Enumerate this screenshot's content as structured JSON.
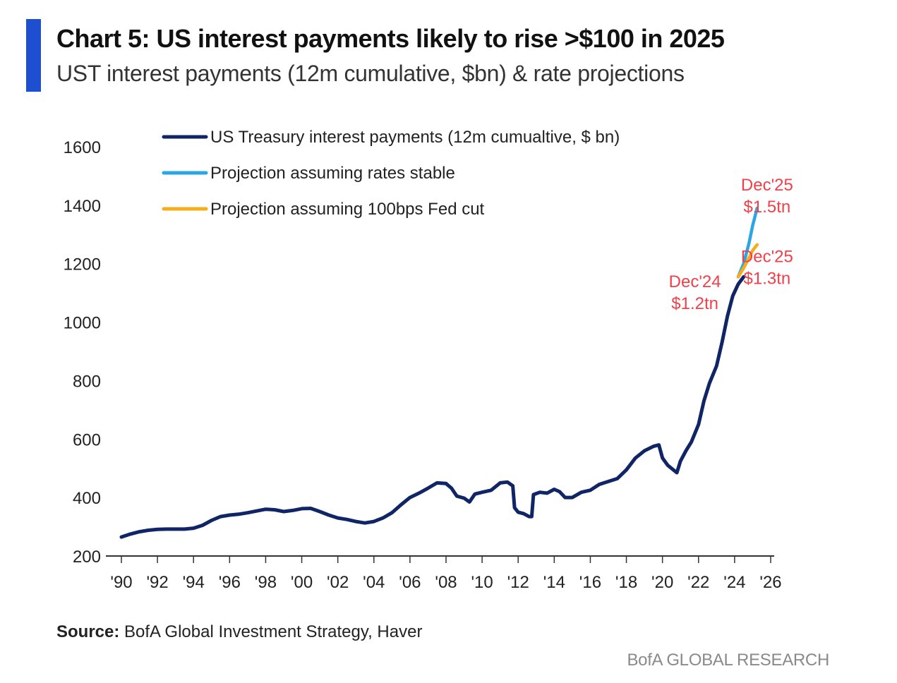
{
  "header": {
    "title": "Chart 5: US interest payments likely to rise >$100 in 2025",
    "subtitle": "UST interest payments (12m cumulative, $bn) & rate projections"
  },
  "footer": {
    "source_label": "Source:",
    "source_text": " BofA Global Investment Strategy, Haver",
    "brand": "BofA GLOBAL RESEARCH"
  },
  "colors": {
    "accent": "#1f4fd1",
    "main_series": "#0f2566",
    "stable_series": "#2aa6e4",
    "cut_series": "#f6ad1c",
    "annotation": "#f2404a",
    "axis": "#333333"
  },
  "chart_data": {
    "type": "line",
    "title": "Chart 5: US interest payments likely to rise >$100 in 2025",
    "subtitle": "UST interest payments (12m cumulative, $bn) & rate projections",
    "xlabel": "",
    "ylabel": "",
    "xlim": [
      1990,
      2026
    ],
    "ylim": [
      200,
      1600
    ],
    "y_ticks": [
      200,
      400,
      600,
      800,
      1000,
      1200,
      1400,
      1600
    ],
    "x_ticks": [
      1990,
      1992,
      1994,
      1996,
      1998,
      2000,
      2002,
      2004,
      2006,
      2008,
      2010,
      2012,
      2014,
      2016,
      2018,
      2020,
      2022,
      2024,
      2026
    ],
    "x_tick_labels": [
      "'90",
      "'92",
      "'94",
      "'96",
      "'98",
      "'00",
      "'02",
      "'04",
      "'06",
      "'08",
      "'10",
      "'12",
      "'14",
      "'16",
      "'18",
      "'20",
      "'22",
      "'24",
      "'26"
    ],
    "grid": false,
    "legend_position": "top-left",
    "series": [
      {
        "name": "US Treasury interest payments (12m cumualtive, $ bn)",
        "color": "#0f2566",
        "points": [
          [
            1990.0,
            265
          ],
          [
            1990.5,
            275
          ],
          [
            1991.0,
            283
          ],
          [
            1991.5,
            288
          ],
          [
            1992.0,
            291
          ],
          [
            1992.5,
            292
          ],
          [
            1993.0,
            292
          ],
          [
            1993.5,
            292
          ],
          [
            1994.0,
            295
          ],
          [
            1994.5,
            305
          ],
          [
            1995.0,
            322
          ],
          [
            1995.5,
            335
          ],
          [
            1996.0,
            340
          ],
          [
            1996.5,
            343
          ],
          [
            1997.0,
            348
          ],
          [
            1997.5,
            354
          ],
          [
            1998.0,
            360
          ],
          [
            1998.5,
            358
          ],
          [
            1999.0,
            352
          ],
          [
            1999.5,
            356
          ],
          [
            2000.0,
            362
          ],
          [
            2000.5,
            363
          ],
          [
            2001.0,
            352
          ],
          [
            2001.5,
            340
          ],
          [
            2002.0,
            330
          ],
          [
            2002.5,
            325
          ],
          [
            2003.0,
            318
          ],
          [
            2003.5,
            313
          ],
          [
            2004.0,
            318
          ],
          [
            2004.5,
            330
          ],
          [
            2005.0,
            348
          ],
          [
            2005.5,
            375
          ],
          [
            2006.0,
            400
          ],
          [
            2006.5,
            415
          ],
          [
            2007.0,
            432
          ],
          [
            2007.5,
            450
          ],
          [
            2008.0,
            448
          ],
          [
            2008.3,
            432
          ],
          [
            2008.6,
            405
          ],
          [
            2009.0,
            398
          ],
          [
            2009.3,
            385
          ],
          [
            2009.6,
            412
          ],
          [
            2010.0,
            418
          ],
          [
            2010.5,
            425
          ],
          [
            2011.0,
            450
          ],
          [
            2011.4,
            453
          ],
          [
            2011.7,
            440
          ],
          [
            2011.8,
            365
          ],
          [
            2012.0,
            350
          ],
          [
            2012.3,
            345
          ],
          [
            2012.6,
            335
          ],
          [
            2012.75,
            335
          ],
          [
            2012.85,
            410
          ],
          [
            2013.2,
            418
          ],
          [
            2013.6,
            415
          ],
          [
            2014.0,
            428
          ],
          [
            2014.3,
            420
          ],
          [
            2014.6,
            400
          ],
          [
            2015.0,
            400
          ],
          [
            2015.5,
            418
          ],
          [
            2016.0,
            425
          ],
          [
            2016.5,
            445
          ],
          [
            2017.0,
            455
          ],
          [
            2017.5,
            465
          ],
          [
            2018.0,
            495
          ],
          [
            2018.5,
            535
          ],
          [
            2019.0,
            560
          ],
          [
            2019.5,
            575
          ],
          [
            2019.8,
            580
          ],
          [
            2020.0,
            535
          ],
          [
            2020.3,
            510
          ],
          [
            2020.6,
            495
          ],
          [
            2020.8,
            485
          ],
          [
            2021.0,
            525
          ],
          [
            2021.3,
            560
          ],
          [
            2021.6,
            590
          ],
          [
            2022.0,
            650
          ],
          [
            2022.3,
            730
          ],
          [
            2022.6,
            790
          ],
          [
            2023.0,
            850
          ],
          [
            2023.3,
            930
          ],
          [
            2023.6,
            1020
          ],
          [
            2023.9,
            1090
          ],
          [
            2024.2,
            1130
          ],
          [
            2024.5,
            1155
          ]
        ]
      },
      {
        "name": "Projection assuming rates stable",
        "color": "#2aa6e4",
        "points": [
          [
            2024.2,
            1155
          ],
          [
            2024.5,
            1200
          ],
          [
            2024.8,
            1270
          ],
          [
            2025.0,
            1330
          ],
          [
            2025.25,
            1390
          ]
        ]
      },
      {
        "name": "Projection assuming 100bps Fed cut",
        "color": "#f6ad1c",
        "points": [
          [
            2024.2,
            1155
          ],
          [
            2024.5,
            1185
          ],
          [
            2024.8,
            1220
          ],
          [
            2025.0,
            1245
          ],
          [
            2025.25,
            1265
          ]
        ]
      }
    ],
    "annotations": [
      {
        "lines": [
          "Dec'25",
          "$1.5tn"
        ],
        "x": 2025.8,
        "y": 1450
      },
      {
        "lines": [
          "Dec'25",
          "$1.3tn"
        ],
        "x": 2025.8,
        "y": 1205
      },
      {
        "lines": [
          "Dec'24",
          "$1.2tn"
        ],
        "x": 2021.8,
        "y": 1120
      }
    ]
  }
}
